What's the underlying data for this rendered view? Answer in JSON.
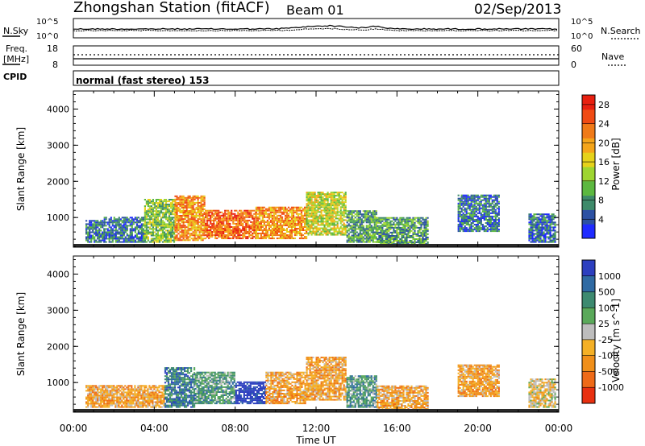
{
  "header": {
    "station": "Zhongshan Station (fitACF)",
    "beam": "Beam 01",
    "date": "02/Sep/2013"
  },
  "noise_panel": {
    "left_label": "N.Sky",
    "right_label": "N.Search",
    "left_ticks": [
      "10^5",
      "10^0"
    ],
    "right_ticks": [
      "10^5",
      "10^0"
    ]
  },
  "freq_panel": {
    "left_label": "Freq.",
    "left_unit": "[MHz]",
    "right_label": "Nave",
    "left_ticks": [
      "18",
      "8"
    ],
    "right_ticks": [
      "60",
      "0"
    ]
  },
  "cpid_panel": {
    "label": "CPID",
    "mode_text": "normal (fast stereo) 153"
  },
  "x_axis": {
    "title": "Time UT",
    "ticks": [
      "00:00",
      "04:00",
      "08:00",
      "12:00",
      "16:00",
      "20:00",
      "00:00"
    ]
  },
  "colors": {
    "power_scale": [
      "#1f2bff",
      "#2c51a3",
      "#3e8a6a",
      "#5cb840",
      "#9ed531",
      "#e6d21a",
      "#f5a51a",
      "#f07a18",
      "#f04b14",
      "#e82010"
    ],
    "velocity_scale": [
      "#2c3fbf",
      "#2f6aa3",
      "#3d8a70",
      "#5aa95a",
      "#bdbdbd",
      "#f4b026",
      "#f08f1a",
      "#ee6a18",
      "#e83010"
    ]
  },
  "chart_data": [
    {
      "type": "heatmap",
      "title": "",
      "xlabel": "",
      "ylabel": "Slant Range [km]",
      "yticks": [
        "1000",
        "2000",
        "3000",
        "4000"
      ],
      "xlim": [
        0,
        24
      ],
      "ylim": [
        180,
        4500
      ],
      "colorbar": {
        "label": "Power [dB]",
        "ticks": [
          "4",
          "8",
          "12",
          "16",
          "20",
          "24",
          "28"
        ],
        "range": [
          0,
          30
        ]
      },
      "grid": false,
      "regions": [
        {
          "t0": 0.6,
          "t1": 1.5,
          "r0": 300,
          "r1": 900,
          "level": 6
        },
        {
          "t0": 1.5,
          "t1": 3.5,
          "r0": 300,
          "r1": 1000,
          "level": 8
        },
        {
          "t0": 3.5,
          "t1": 5.0,
          "r0": 300,
          "r1": 1500,
          "level": 12
        },
        {
          "t0": 5.0,
          "t1": 6.5,
          "r0": 350,
          "r1": 1600,
          "level": 22
        },
        {
          "t0": 6.5,
          "t1": 9.0,
          "r0": 400,
          "r1": 1200,
          "level": 25
        },
        {
          "t0": 9.0,
          "t1": 11.5,
          "r0": 400,
          "r1": 1300,
          "level": 21
        },
        {
          "t0": 11.5,
          "t1": 13.5,
          "r0": 500,
          "r1": 1700,
          "level": 15
        },
        {
          "t0": 13.5,
          "t1": 15.0,
          "r0": 300,
          "r1": 1200,
          "level": 11
        },
        {
          "t0": 15.0,
          "t1": 17.5,
          "r0": 200,
          "r1": 1000,
          "level": 9
        },
        {
          "t0": 19.0,
          "t1": 21.0,
          "r0": 600,
          "r1": 1600,
          "level": 7
        },
        {
          "t0": 22.5,
          "t1": 23.8,
          "r0": 300,
          "r1": 1100,
          "level": 6
        }
      ]
    },
    {
      "type": "heatmap",
      "title": "",
      "xlabel": "Time UT",
      "ylabel": "Slant Range [km]",
      "yticks": [
        "1000",
        "2000",
        "3000",
        "4000"
      ],
      "xlim": [
        0,
        24
      ],
      "ylim": [
        180,
        4500
      ],
      "colorbar": {
        "label": "Velocity [m s^-1]",
        "ticks": [
          "1000",
          "500",
          "100",
          "25",
          "-25",
          "-100",
          "-500",
          "-1000"
        ]
      },
      "grid": false,
      "regions": [
        {
          "t0": 0.6,
          "t1": 4.5,
          "r0": 300,
          "r1": 900,
          "level": -300
        },
        {
          "t0": 4.5,
          "t1": 6.0,
          "r0": 300,
          "r1": 1400,
          "level": 200
        },
        {
          "t0": 6.0,
          "t1": 8.0,
          "r0": 400,
          "r1": 1300,
          "level": 100
        },
        {
          "t0": 8.0,
          "t1": 9.5,
          "r0": 400,
          "r1": 1000,
          "level": 800
        },
        {
          "t0": 9.5,
          "t1": 11.5,
          "r0": 400,
          "r1": 1300,
          "level": -400
        },
        {
          "t0": 11.5,
          "t1": 13.5,
          "r0": 500,
          "r1": 1700,
          "level": -300
        },
        {
          "t0": 13.5,
          "t1": 15.0,
          "r0": 300,
          "r1": 1200,
          "level": 80
        },
        {
          "t0": 15.0,
          "t1": 17.5,
          "r0": 200,
          "r1": 900,
          "level": -250
        },
        {
          "t0": 19.0,
          "t1": 21.0,
          "r0": 600,
          "r1": 1500,
          "level": -300
        },
        {
          "t0": 22.5,
          "t1": 23.8,
          "r0": 300,
          "r1": 1100,
          "level": -150
        }
      ]
    }
  ]
}
